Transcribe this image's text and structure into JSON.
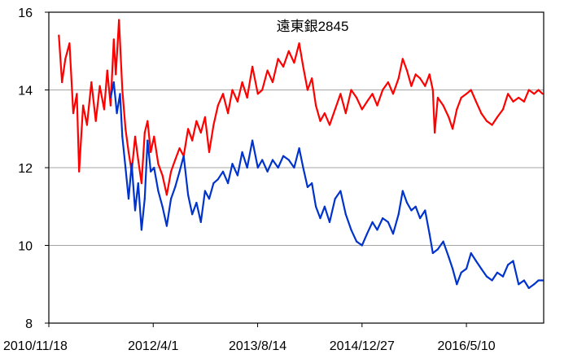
{
  "chart_data": {
    "type": "line",
    "title": "遠東銀2845",
    "xlabel": "",
    "ylabel": "",
    "ylim": [
      8,
      16
    ],
    "y_ticks": [
      8,
      10,
      12,
      14,
      16
    ],
    "x_range": [
      "2010-11-18",
      "2017-05-15"
    ],
    "x_tick_labels": [
      {
        "date": "2010-11-18",
        "label": "2010/11/18"
      },
      {
        "date": "2012-04-01",
        "label": "2012/4/1"
      },
      {
        "date": "2013-08-14",
        "label": "2013/8/14"
      },
      {
        "date": "2014-12-27",
        "label": "2014/12/27"
      },
      {
        "date": "2016-05-10",
        "label": "2016/5/10"
      }
    ],
    "grid": true,
    "legend": "none",
    "series": [
      {
        "color": "#ff0000",
        "points": [
          [
            "2011-01-05",
            15.4
          ],
          [
            "2011-01-20",
            14.2
          ],
          [
            "2011-02-05",
            14.8
          ],
          [
            "2011-02-25",
            15.2
          ],
          [
            "2011-03-15",
            13.4
          ],
          [
            "2011-04-01",
            13.9
          ],
          [
            "2011-04-12",
            11.9
          ],
          [
            "2011-05-01",
            13.6
          ],
          [
            "2011-05-20",
            13.1
          ],
          [
            "2011-06-10",
            14.2
          ],
          [
            "2011-07-01",
            13.2
          ],
          [
            "2011-07-20",
            14.1
          ],
          [
            "2011-08-10",
            13.5
          ],
          [
            "2011-08-25",
            14.5
          ],
          [
            "2011-09-10",
            13.6
          ],
          [
            "2011-09-25",
            15.3
          ],
          [
            "2011-10-05",
            14.4
          ],
          [
            "2011-10-20",
            15.8
          ],
          [
            "2011-11-05",
            14.0
          ],
          [
            "2011-11-20",
            13.0
          ],
          [
            "2011-12-05",
            12.4
          ],
          [
            "2011-12-20",
            11.9
          ],
          [
            "2012-01-05",
            12.8
          ],
          [
            "2012-01-20",
            12.2
          ],
          [
            "2012-02-05",
            11.6
          ],
          [
            "2012-02-20",
            12.9
          ],
          [
            "2012-03-05",
            13.2
          ],
          [
            "2012-03-20",
            12.4
          ],
          [
            "2012-04-05",
            12.8
          ],
          [
            "2012-04-25",
            12.1
          ],
          [
            "2012-05-15",
            11.8
          ],
          [
            "2012-06-05",
            11.3
          ],
          [
            "2012-06-25",
            11.9
          ],
          [
            "2012-07-15",
            12.2
          ],
          [
            "2012-08-05",
            12.5
          ],
          [
            "2012-08-25",
            12.3
          ],
          [
            "2012-09-15",
            13.0
          ],
          [
            "2012-10-05",
            12.7
          ],
          [
            "2012-10-25",
            13.2
          ],
          [
            "2012-11-15",
            12.9
          ],
          [
            "2012-12-05",
            13.3
          ],
          [
            "2012-12-25",
            12.4
          ],
          [
            "2013-01-15",
            13.1
          ],
          [
            "2013-02-05",
            13.6
          ],
          [
            "2013-03-01",
            13.9
          ],
          [
            "2013-03-25",
            13.4
          ],
          [
            "2013-04-15",
            14.0
          ],
          [
            "2013-05-10",
            13.7
          ],
          [
            "2013-06-01",
            14.2
          ],
          [
            "2013-06-25",
            13.8
          ],
          [
            "2013-07-20",
            14.6
          ],
          [
            "2013-08-15",
            13.9
          ],
          [
            "2013-09-05",
            14.0
          ],
          [
            "2013-09-30",
            14.5
          ],
          [
            "2013-10-25",
            14.2
          ],
          [
            "2013-11-20",
            14.8
          ],
          [
            "2013-12-15",
            14.6
          ],
          [
            "2014-01-10",
            15.0
          ],
          [
            "2014-02-05",
            14.7
          ],
          [
            "2014-03-01",
            15.2
          ],
          [
            "2014-03-20",
            14.6
          ],
          [
            "2014-04-10",
            14.0
          ],
          [
            "2014-05-01",
            14.3
          ],
          [
            "2014-05-20",
            13.6
          ],
          [
            "2014-06-10",
            13.2
          ],
          [
            "2014-07-01",
            13.4
          ],
          [
            "2014-07-25",
            13.1
          ],
          [
            "2014-08-20",
            13.5
          ],
          [
            "2014-09-15",
            13.9
          ],
          [
            "2014-10-10",
            13.4
          ],
          [
            "2014-11-05",
            14.0
          ],
          [
            "2014-12-01",
            13.8
          ],
          [
            "2014-12-27",
            13.5
          ],
          [
            "2015-01-20",
            13.7
          ],
          [
            "2015-02-15",
            13.9
          ],
          [
            "2015-03-10",
            13.6
          ],
          [
            "2015-04-05",
            14.0
          ],
          [
            "2015-05-01",
            14.2
          ],
          [
            "2015-05-25",
            13.9
          ],
          [
            "2015-06-20",
            14.3
          ],
          [
            "2015-07-10",
            14.8
          ],
          [
            "2015-07-30",
            14.5
          ],
          [
            "2015-08-20",
            14.1
          ],
          [
            "2015-09-10",
            14.4
          ],
          [
            "2015-10-01",
            14.3
          ],
          [
            "2015-10-25",
            14.1
          ],
          [
            "2015-11-15",
            14.4
          ],
          [
            "2015-12-01",
            14.0
          ],
          [
            "2015-12-10",
            12.9
          ],
          [
            "2015-12-25",
            13.8
          ],
          [
            "2016-01-20",
            13.6
          ],
          [
            "2016-02-15",
            13.3
          ],
          [
            "2016-03-05",
            13.0
          ],
          [
            "2016-03-25",
            13.5
          ],
          [
            "2016-04-15",
            13.8
          ],
          [
            "2016-05-10",
            13.9
          ],
          [
            "2016-06-01",
            14.0
          ],
          [
            "2016-06-25",
            13.7
          ],
          [
            "2016-07-20",
            13.4
          ],
          [
            "2016-08-15",
            13.2
          ],
          [
            "2016-09-10",
            13.1
          ],
          [
            "2016-10-05",
            13.3
          ],
          [
            "2016-11-01",
            13.5
          ],
          [
            "2016-11-25",
            13.9
          ],
          [
            "2016-12-20",
            13.7
          ],
          [
            "2017-01-15",
            13.8
          ],
          [
            "2017-02-10",
            13.7
          ],
          [
            "2017-03-05",
            14.0
          ],
          [
            "2017-03-30",
            13.9
          ],
          [
            "2017-04-20",
            14.0
          ],
          [
            "2017-05-10",
            13.9
          ]
        ]
      },
      {
        "color": "#0033cc",
        "points": [
          [
            "2011-09-10",
            13.8
          ],
          [
            "2011-09-25",
            14.2
          ],
          [
            "2011-10-10",
            13.4
          ],
          [
            "2011-10-25",
            13.9
          ],
          [
            "2011-11-05",
            12.8
          ],
          [
            "2011-11-20",
            12.0
          ],
          [
            "2011-12-05",
            11.2
          ],
          [
            "2011-12-20",
            12.1
          ],
          [
            "2012-01-05",
            10.9
          ],
          [
            "2012-01-20",
            11.6
          ],
          [
            "2012-02-05",
            10.4
          ],
          [
            "2012-02-20",
            11.2
          ],
          [
            "2012-03-05",
            12.7
          ],
          [
            "2012-03-20",
            11.9
          ],
          [
            "2012-04-05",
            12.0
          ],
          [
            "2012-04-25",
            11.4
          ],
          [
            "2012-05-15",
            11.0
          ],
          [
            "2012-06-05",
            10.5
          ],
          [
            "2012-06-25",
            11.2
          ],
          [
            "2012-07-15",
            11.5
          ],
          [
            "2012-08-05",
            11.9
          ],
          [
            "2012-08-25",
            12.3
          ],
          [
            "2012-09-15",
            11.3
          ],
          [
            "2012-10-05",
            10.8
          ],
          [
            "2012-10-25",
            11.1
          ],
          [
            "2012-11-15",
            10.6
          ],
          [
            "2012-12-05",
            11.4
          ],
          [
            "2012-12-25",
            11.2
          ],
          [
            "2013-01-15",
            11.6
          ],
          [
            "2013-02-05",
            11.7
          ],
          [
            "2013-03-01",
            11.9
          ],
          [
            "2013-03-25",
            11.6
          ],
          [
            "2013-04-15",
            12.1
          ],
          [
            "2013-05-10",
            11.8
          ],
          [
            "2013-06-01",
            12.4
          ],
          [
            "2013-06-25",
            12.0
          ],
          [
            "2013-07-20",
            12.7
          ],
          [
            "2013-08-15",
            12.0
          ],
          [
            "2013-09-05",
            12.2
          ],
          [
            "2013-09-30",
            11.9
          ],
          [
            "2013-10-25",
            12.2
          ],
          [
            "2013-11-20",
            12.0
          ],
          [
            "2013-12-15",
            12.3
          ],
          [
            "2014-01-10",
            12.2
          ],
          [
            "2014-02-05",
            12.0
          ],
          [
            "2014-03-01",
            12.5
          ],
          [
            "2014-03-20",
            12.0
          ],
          [
            "2014-04-10",
            11.5
          ],
          [
            "2014-05-01",
            11.6
          ],
          [
            "2014-05-20",
            11.0
          ],
          [
            "2014-06-10",
            10.7
          ],
          [
            "2014-07-01",
            11.0
          ],
          [
            "2014-07-25",
            10.6
          ],
          [
            "2014-08-20",
            11.2
          ],
          [
            "2014-09-15",
            11.4
          ],
          [
            "2014-10-10",
            10.8
          ],
          [
            "2014-11-05",
            10.4
          ],
          [
            "2014-12-01",
            10.1
          ],
          [
            "2014-12-27",
            10.0
          ],
          [
            "2015-01-20",
            10.3
          ],
          [
            "2015-02-15",
            10.6
          ],
          [
            "2015-03-10",
            10.4
          ],
          [
            "2015-04-05",
            10.7
          ],
          [
            "2015-05-01",
            10.6
          ],
          [
            "2015-05-25",
            10.3
          ],
          [
            "2015-06-20",
            10.8
          ],
          [
            "2015-07-10",
            11.4
          ],
          [
            "2015-07-30",
            11.1
          ],
          [
            "2015-08-20",
            10.9
          ],
          [
            "2015-09-10",
            11.0
          ],
          [
            "2015-10-01",
            10.7
          ],
          [
            "2015-10-25",
            10.9
          ],
          [
            "2015-11-15",
            10.3
          ],
          [
            "2015-12-01",
            9.8
          ],
          [
            "2015-12-25",
            9.9
          ],
          [
            "2016-01-20",
            10.1
          ],
          [
            "2016-02-15",
            9.7
          ],
          [
            "2016-03-05",
            9.4
          ],
          [
            "2016-03-25",
            9.0
          ],
          [
            "2016-04-15",
            9.3
          ],
          [
            "2016-05-10",
            9.4
          ],
          [
            "2016-06-01",
            9.8
          ],
          [
            "2016-06-25",
            9.6
          ],
          [
            "2016-07-20",
            9.4
          ],
          [
            "2016-08-15",
            9.2
          ],
          [
            "2016-09-10",
            9.1
          ],
          [
            "2016-10-05",
            9.3
          ],
          [
            "2016-11-01",
            9.2
          ],
          [
            "2016-11-25",
            9.5
          ],
          [
            "2016-12-20",
            9.6
          ],
          [
            "2017-01-15",
            9.0
          ],
          [
            "2017-02-10",
            9.1
          ],
          [
            "2017-03-05",
            8.9
          ],
          [
            "2017-03-30",
            9.0
          ],
          [
            "2017-04-20",
            9.1
          ],
          [
            "2017-05-10",
            9.1
          ]
        ]
      }
    ]
  }
}
